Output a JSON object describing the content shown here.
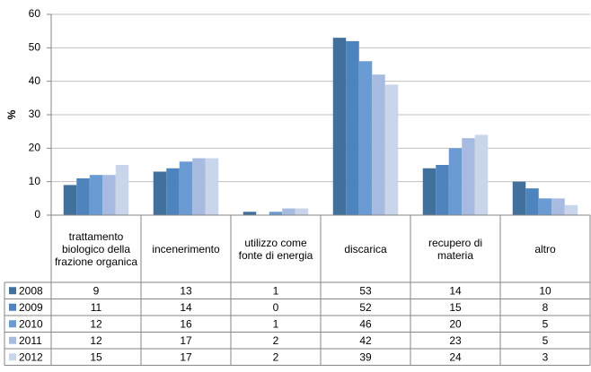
{
  "chart_data": {
    "type": "bar",
    "y_label": "%",
    "categories": [
      "trattamento biologico della frazione organica",
      "incenerimento",
      "utilizzo come fonte di energia",
      "discarica",
      "recupero di materia",
      "altro"
    ],
    "series": [
      {
        "name": "2008",
        "color": "#41709c",
        "values": [
          9,
          13,
          1,
          53,
          14,
          10
        ]
      },
      {
        "name": "2009",
        "color": "#4d84bd",
        "values": [
          11,
          14,
          0,
          52,
          15,
          8
        ]
      },
      {
        "name": "2010",
        "color": "#6a9bd3",
        "values": [
          12,
          16,
          1,
          46,
          20,
          5
        ]
      },
      {
        "name": "2011",
        "color": "#a6bbdf",
        "values": [
          12,
          17,
          2,
          42,
          23,
          5
        ]
      },
      {
        "name": "2012",
        "color": "#c9d5ea",
        "values": [
          15,
          17,
          2,
          39,
          24,
          3
        ]
      }
    ],
    "ylim": [
      0,
      60
    ],
    "yticks": [
      0,
      10,
      20,
      30,
      40,
      50,
      60
    ],
    "grid": true
  }
}
